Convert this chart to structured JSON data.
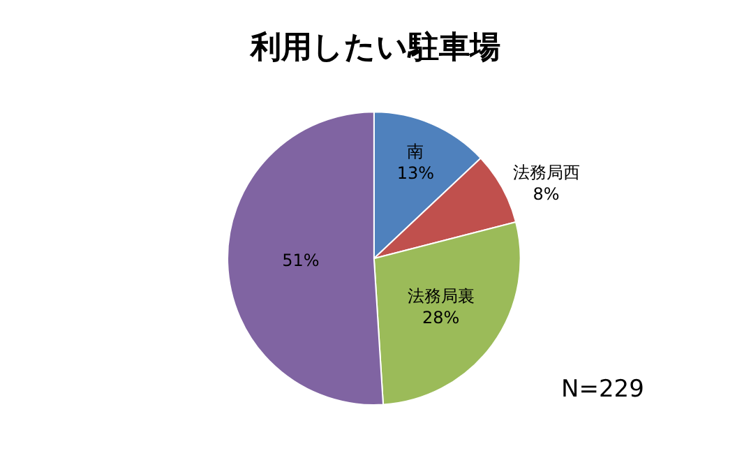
{
  "chart_data": {
    "type": "pie",
    "title": "利用したい駐車場",
    "categories": [
      "南",
      "法務局西",
      "法務局裏",
      null
    ],
    "values": [
      13,
      8,
      28,
      51
    ],
    "value_labels": [
      "13%",
      "8%",
      "28%",
      "51%"
    ],
    "colors": [
      "#4f81bd",
      "#c0504d",
      "#9bbb59",
      "#8064a2"
    ],
    "legend": false,
    "annotations": [
      "N=229"
    ]
  }
}
